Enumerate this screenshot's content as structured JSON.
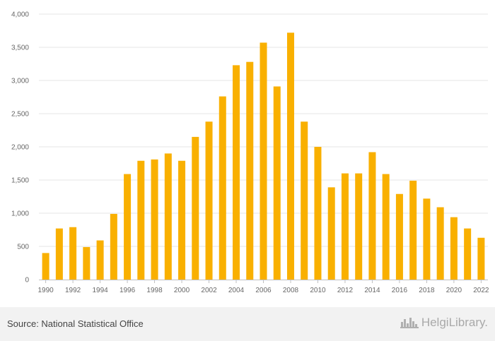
{
  "chart_data": {
    "type": "bar",
    "categories": [
      "1990",
      "1991",
      "1992",
      "1993",
      "1994",
      "1995",
      "1996",
      "1997",
      "1998",
      "1999",
      "2000",
      "2001",
      "2002",
      "2003",
      "2004",
      "2005",
      "2006",
      "2007",
      "2008",
      "2009",
      "2010",
      "2011",
      "2012",
      "2013",
      "2014",
      "2015",
      "2016",
      "2017",
      "2018",
      "2019",
      "2020",
      "2021",
      "2022"
    ],
    "x_tick_labels": [
      "1990",
      "1992",
      "1994",
      "1996",
      "1998",
      "2000",
      "2002",
      "2004",
      "2006",
      "2008",
      "2010",
      "2012",
      "2014",
      "2016",
      "2018",
      "2020",
      "2022"
    ],
    "series": [
      {
        "values": [
          400,
          770,
          790,
          490,
          590,
          990,
          1590,
          1790,
          1810,
          1900,
          1790,
          2150,
          2380,
          2760,
          3230,
          3280,
          3570,
          2910,
          3720,
          2380,
          2000,
          1390,
          1600,
          1600,
          1920,
          1590,
          1290,
          1490,
          1220,
          1090,
          940,
          770,
          630
        ],
        "color": "#f9b000"
      }
    ],
    "y_ticks": [
      "0",
      "500",
      "1,000",
      "1,500",
      "2,000",
      "2,500",
      "3,000",
      "3,500",
      "4,000"
    ],
    "ylim": [
      0,
      4000
    ],
    "grid": true,
    "title": "",
    "xlabel": "",
    "ylabel": ""
  },
  "footer": {
    "source": "Source: National Statistical Office",
    "logo_text": "HelgiLibrary.",
    "logo_icon": "city-skyline-icon"
  }
}
